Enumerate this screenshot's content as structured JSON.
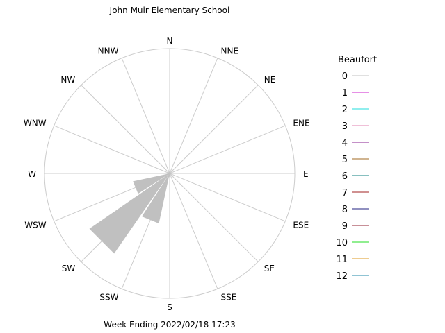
{
  "chart_data": {
    "type": "wind-rose",
    "title": "John Muir Elementary School",
    "footer": "Week Ending 2022/02/18 17:23",
    "directions": [
      "N",
      "NNE",
      "NE",
      "ENE",
      "E",
      "ESE",
      "SE",
      "SSE",
      "S",
      "SSW",
      "SW",
      "WSW",
      "W",
      "WNW",
      "NW",
      "NNW"
    ],
    "legend_title": "Beaufort",
    "legend_position": "right",
    "beaufort": [
      {
        "label": "0",
        "color": "#c0c0c0"
      },
      {
        "label": "1",
        "color": "#cc22cc"
      },
      {
        "label": "2",
        "color": "#22dddd"
      },
      {
        "label": "3",
        "color": "#e080b0"
      },
      {
        "label": "4",
        "color": "#8a2090"
      },
      {
        "label": "5",
        "color": "#a06820"
      },
      {
        "label": "6",
        "color": "#108080"
      },
      {
        "label": "7",
        "color": "#a02020"
      },
      {
        "label": "8",
        "color": "#202080"
      },
      {
        "label": "9",
        "color": "#902030"
      },
      {
        "label": "10",
        "color": "#22dd22"
      },
      {
        "label": "11",
        "color": "#dd9922"
      },
      {
        "label": "12",
        "color": "#2288aa"
      }
    ],
    "frequencies": [
      {
        "direction": "N",
        "beaufort": "0",
        "value": 0.01
      },
      {
        "direction": "NNE",
        "beaufort": "0",
        "value": 0.01
      },
      {
        "direction": "NE",
        "beaufort": "0",
        "value": 0.01
      },
      {
        "direction": "ENE",
        "beaufort": "0",
        "value": 0.01
      },
      {
        "direction": "E",
        "beaufort": "0",
        "value": 0.01
      },
      {
        "direction": "ESE",
        "beaufort": "0",
        "value": 0.01
      },
      {
        "direction": "SE",
        "beaufort": "0",
        "value": 0.01
      },
      {
        "direction": "SSE",
        "beaufort": "0",
        "value": 0.01
      },
      {
        "direction": "S",
        "beaufort": "0",
        "value": 0.03
      },
      {
        "direction": "SSW",
        "beaufort": "0",
        "value": 0.41
      },
      {
        "direction": "SW",
        "beaufort": "0",
        "value": 0.78
      },
      {
        "direction": "WSW",
        "beaufort": "0",
        "value": 0.3
      },
      {
        "direction": "W",
        "beaufort": "0",
        "value": 0.02
      },
      {
        "direction": "WNW",
        "beaufort": "0",
        "value": 0.01
      },
      {
        "direction": "NW",
        "beaufort": "0",
        "value": 0.01
      },
      {
        "direction": "NNW",
        "beaufort": "0",
        "value": 0.01
      }
    ],
    "rmax": 1.0,
    "grid": true
  }
}
